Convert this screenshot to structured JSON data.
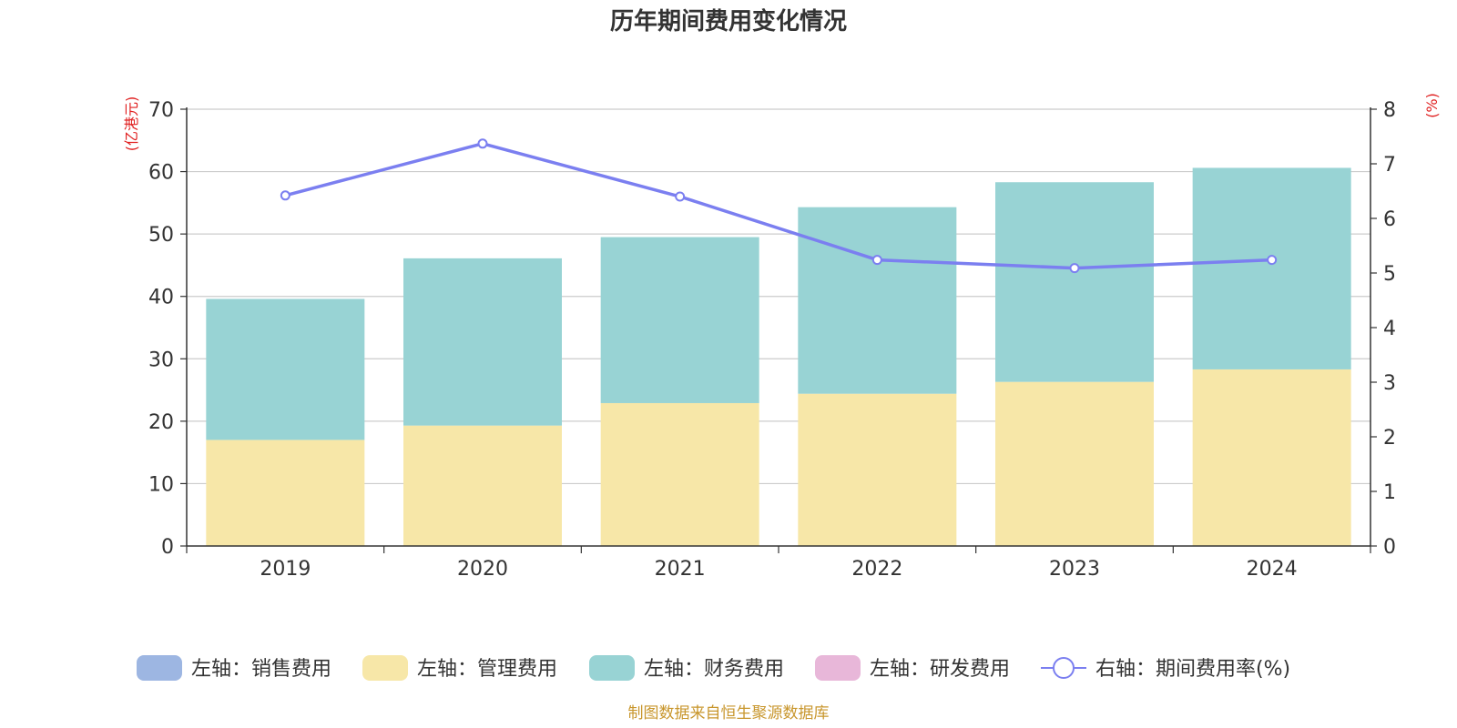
{
  "chart_data": {
    "type": "bar",
    "title": "历年期间费用变化情况",
    "categories": [
      "2019",
      "2020",
      "2021",
      "2022",
      "2023",
      "2024"
    ],
    "left_axis": {
      "unit": "(亿港元)",
      "ylim": [
        0,
        70
      ],
      "ticks": [
        "0",
        "10",
        "20",
        "30",
        "40",
        "50",
        "60",
        "70"
      ]
    },
    "right_axis": {
      "unit": "(%)",
      "ylim": [
        0,
        8
      ],
      "ticks": [
        "0",
        "1",
        "2",
        "3",
        "4",
        "5",
        "6",
        "7",
        "8"
      ]
    },
    "stacked": true,
    "series": [
      {
        "name": "左轴：销售费用",
        "axis": "left",
        "kind": "bar",
        "color": "#9db6e2",
        "values": [
          0,
          0,
          0,
          0,
          0,
          0
        ]
      },
      {
        "name": "左轴：管理费用",
        "axis": "left",
        "kind": "bar",
        "color": "#f7e7a8",
        "values": [
          17.0,
          19.3,
          22.9,
          24.4,
          26.3,
          28.3
        ]
      },
      {
        "name": "左轴：财务费用",
        "axis": "left",
        "kind": "bar",
        "color": "#98d3d4",
        "values": [
          22.6,
          26.8,
          26.6,
          29.9,
          32.0,
          32.3
        ]
      },
      {
        "name": "左轴：研发费用",
        "axis": "left",
        "kind": "bar",
        "color": "#e8b7d9",
        "values": [
          0,
          0,
          0,
          0,
          0,
          0
        ]
      },
      {
        "name": "右轴：期间费用率(%)",
        "axis": "right",
        "kind": "line",
        "color": "#7b7ff0",
        "values": [
          6.42,
          7.37,
          6.4,
          5.24,
          5.09,
          5.24
        ]
      }
    ],
    "grid": true,
    "legend_position": "bottom"
  },
  "footer": {
    "source": "制图数据来自恒生聚源数据库"
  }
}
